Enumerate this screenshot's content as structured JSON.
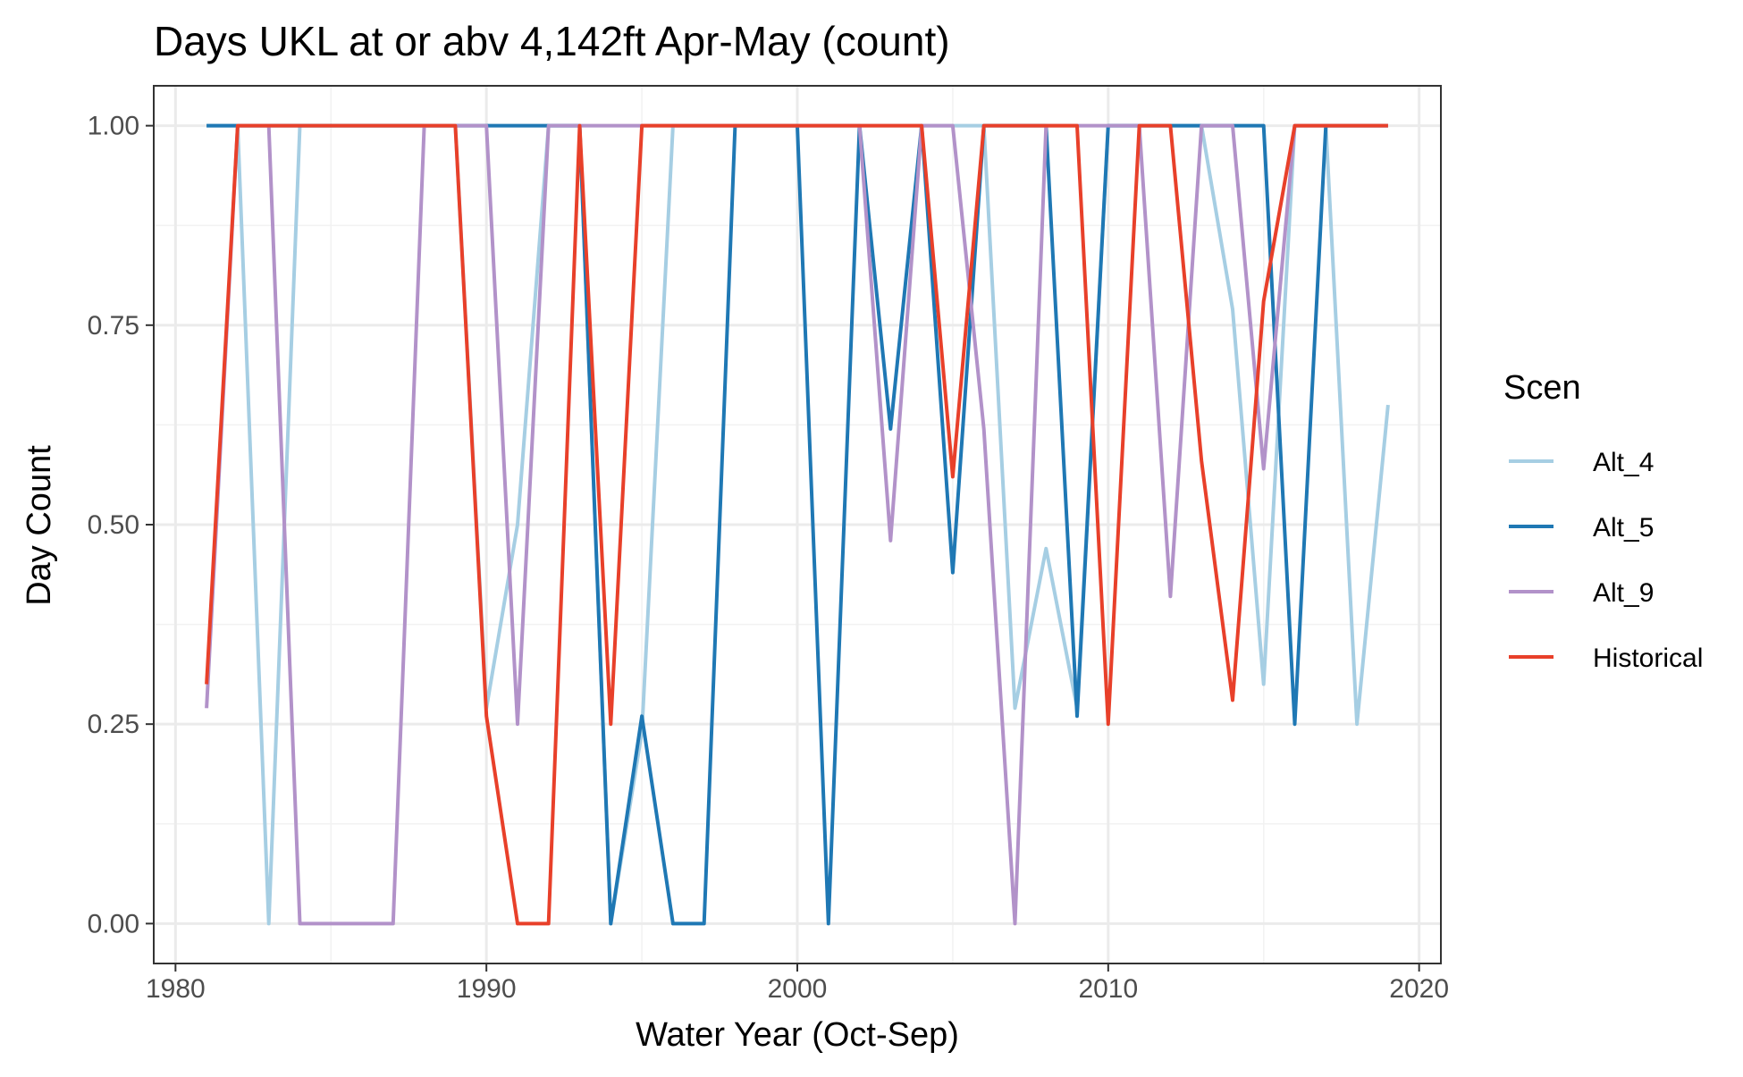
{
  "chart_data": {
    "type": "line",
    "title": "Days UKL at or abv 4,142ft Apr-May (count)",
    "xlabel": "Water Year (Oct-Sep)",
    "ylabel": "Day Count",
    "xlim": [
      1980,
      2020
    ],
    "ylim": [
      0,
      1
    ],
    "x_ticks": [
      1980,
      1990,
      2000,
      2010,
      2020
    ],
    "x_tick_labels": [
      "1980",
      "1990",
      "2000",
      "2010",
      "2020"
    ],
    "y_ticks": [
      0,
      0.25,
      0.5,
      0.75,
      1
    ],
    "y_tick_labels": [
      "0.00",
      "0.25",
      "0.50",
      "0.75",
      "1.00"
    ],
    "grid": true,
    "legend": {
      "title": "Scen",
      "placement": "right"
    },
    "series": [
      {
        "name": "Alt_4",
        "color": "#a6cee3",
        "x": [
          1981,
          1982,
          1983,
          1984,
          1985,
          1986,
          1987,
          1988,
          1989,
          1990,
          1991,
          1992,
          1993,
          1994,
          1995,
          1996,
          1997,
          1998,
          1999,
          2000,
          2001,
          2002,
          2003,
          2004,
          2005,
          2006,
          2007,
          2008,
          2009,
          2010,
          2011,
          2012,
          2013,
          2014,
          2015,
          2016,
          2017,
          2018,
          2019
        ],
        "y": [
          1,
          1,
          0,
          1,
          1,
          1,
          1,
          1,
          1,
          0.27,
          0.5,
          1,
          1,
          0,
          0.24,
          1,
          1,
          1,
          1,
          1,
          1,
          1,
          1,
          1,
          1,
          1,
          0.27,
          0.47,
          0.27,
          1,
          1,
          1,
          1,
          0.77,
          0.3,
          1,
          1,
          0.25,
          0.65
        ]
      },
      {
        "name": "Alt_5",
        "color": "#1f78b4",
        "x": [
          1981,
          1982,
          1983,
          1984,
          1985,
          1986,
          1987,
          1988,
          1989,
          1990,
          1991,
          1992,
          1993,
          1994,
          1995,
          1996,
          1997,
          1998,
          1999,
          2000,
          2001,
          2002,
          2003,
          2004,
          2005,
          2006,
          2007,
          2008,
          2009,
          2010,
          2011,
          2012,
          2013,
          2014,
          2015,
          2016,
          2017,
          2018,
          2019
        ],
        "y": [
          1,
          1,
          1,
          1,
          1,
          1,
          1,
          1,
          1,
          1,
          1,
          1,
          1,
          0,
          0.26,
          0,
          0,
          1,
          1,
          1,
          0,
          1,
          0.62,
          1,
          0.44,
          1,
          1,
          1,
          0.26,
          1,
          1,
          1,
          1,
          1,
          1,
          0.25,
          1,
          1,
          1
        ]
      },
      {
        "name": "Alt_9",
        "color": "#b292c9",
        "x": [
          1981,
          1982,
          1983,
          1984,
          1985,
          1986,
          1987,
          1988,
          1989,
          1990,
          1991,
          1992,
          1993,
          1994,
          1995,
          1996,
          1997,
          1998,
          1999,
          2000,
          2001,
          2002,
          2003,
          2004,
          2005,
          2006,
          2007,
          2008,
          2009,
          2010,
          2011,
          2012,
          2013,
          2014,
          2015,
          2016,
          2017,
          2018,
          2019
        ],
        "y": [
          0.27,
          1,
          1,
          0,
          0,
          0,
          0,
          1,
          1,
          1,
          0.25,
          1,
          1,
          1,
          1,
          1,
          1,
          1,
          1,
          1,
          1,
          1,
          0.48,
          1,
          1,
          0.62,
          0,
          1,
          1,
          1,
          1,
          0.41,
          1,
          1,
          0.57,
          1,
          1,
          1,
          1
        ]
      },
      {
        "name": "Historical",
        "color": "#e8402a",
        "x": [
          1981,
          1982,
          1983,
          1984,
          1985,
          1986,
          1987,
          1988,
          1989,
          1990,
          1991,
          1992,
          1993,
          1994,
          1995,
          1996,
          1997,
          1998,
          1999,
          2000,
          2001,
          2002,
          2003,
          2004,
          2005,
          2006,
          2007,
          2008,
          2009,
          2010,
          2011,
          2012,
          2013,
          2014,
          2015,
          2016,
          2017,
          2018,
          2019
        ],
        "y": [
          0.3,
          1,
          1,
          1,
          1,
          1,
          1,
          1,
          1,
          0.26,
          0,
          0,
          1,
          0.25,
          1,
          1,
          1,
          1,
          1,
          1,
          1,
          1,
          1,
          1,
          0.56,
          1,
          1,
          1,
          1,
          0.25,
          1,
          1,
          0.58,
          0.28,
          0.78,
          1,
          1,
          1,
          1
        ]
      }
    ]
  }
}
